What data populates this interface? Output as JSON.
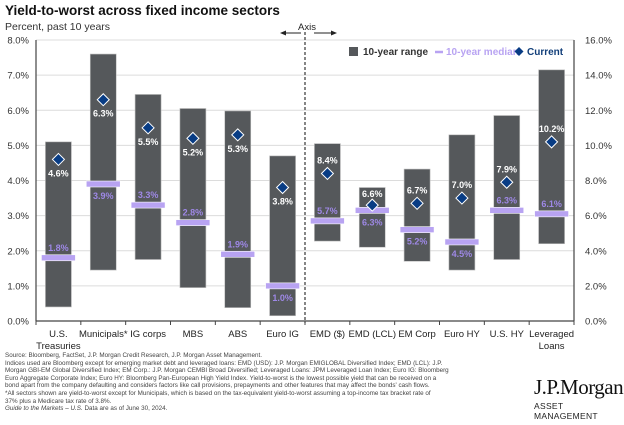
{
  "title": "Yield-to-worst across fixed income sectors",
  "subtitle": "Percent, past 10 years",
  "axis_annotation": "Axis",
  "legend": {
    "range": "10-year range",
    "median": "10-year median",
    "current": "Current"
  },
  "colors": {
    "bar": "#55585b",
    "median": "#b8a3f2",
    "median_label": "#9e88e6",
    "current": "#083c84",
    "current_legend_text": "#123f7a",
    "gridline": "#dcdcdc",
    "axis": "#444444"
  },
  "chart_data": {
    "type": "bar",
    "title": "Yield-to-worst across fixed income sectors",
    "subtitle": "Percent, past 10 years",
    "xlabel": "",
    "ylabel_left": "",
    "ylabel_right": "",
    "left_axis": {
      "range": [
        0,
        8
      ],
      "ticks": [
        "0.0%",
        "1.0%",
        "2.0%",
        "3.0%",
        "4.0%",
        "5.0%",
        "6.0%",
        "7.0%",
        "8.0%"
      ]
    },
    "right_axis": {
      "range": [
        0,
        16
      ],
      "ticks": [
        "0.0%",
        "2.0%",
        "4.0%",
        "6.0%",
        "8.0%",
        "10.0%",
        "12.0%",
        "14.0%",
        "16.0%"
      ]
    },
    "grid": true,
    "legend_position": "top-right",
    "categories": [
      {
        "name": "U.S.",
        "name2": "Treasuries",
        "axis": "left",
        "low": 0.4,
        "high": 5.1,
        "median": 1.8,
        "current": 4.6,
        "median_label": "1.8%",
        "current_label": "4.6%"
      },
      {
        "name": "Municipals*",
        "name2": "",
        "axis": "left",
        "low": 1.45,
        "high": 7.6,
        "median": 3.9,
        "current": 6.3,
        "median_label": "3.9%",
        "current_label": "6.3%"
      },
      {
        "name": "IG corps",
        "name2": "",
        "axis": "left",
        "low": 1.75,
        "high": 6.45,
        "median": 3.3,
        "current": 5.5,
        "median_label": "3.3%",
        "current_label": "5.5%"
      },
      {
        "name": "MBS",
        "name2": "",
        "axis": "left",
        "low": 0.95,
        "high": 6.05,
        "median": 2.8,
        "current": 5.2,
        "median_label": "2.8%",
        "current_label": "5.2%"
      },
      {
        "name": "ABS",
        "name2": "",
        "axis": "left",
        "low": 0.38,
        "high": 5.98,
        "median": 1.9,
        "current": 5.3,
        "median_label": "1.9%",
        "current_label": "5.3%"
      },
      {
        "name": "Euro IG",
        "name2": "",
        "axis": "left",
        "low": 0.15,
        "high": 4.7,
        "median": 1.0,
        "current": 3.8,
        "median_label": "1.0%",
        "current_label": "3.8%"
      },
      {
        "name": "EMD ($)",
        "name2": "",
        "axis": "right",
        "low": 4.55,
        "high": 10.1,
        "median": 5.7,
        "current": 8.4,
        "median_label": "5.7%",
        "current_label": "8.4%"
      },
      {
        "name": "EMD (LCL)",
        "name2": "",
        "axis": "right",
        "low": 4.2,
        "high": 7.6,
        "median": 6.3,
        "current": 6.6,
        "median_label": "6.3%",
        "current_label": "6.6%"
      },
      {
        "name": "EM Corp",
        "name2": "",
        "axis": "right",
        "low": 3.4,
        "high": 8.65,
        "median": 5.2,
        "current": 6.7,
        "median_label": "5.2%",
        "current_label": "6.7%"
      },
      {
        "name": "Euro HY",
        "name2": "",
        "axis": "right",
        "low": 2.9,
        "high": 10.6,
        "median": 4.5,
        "current": 7.0,
        "median_label": "4.5%",
        "current_label": "7.0%"
      },
      {
        "name": "U.S. HY",
        "name2": "",
        "axis": "right",
        "low": 3.5,
        "high": 11.7,
        "median": 6.3,
        "current": 7.9,
        "median_label": "6.3%",
        "current_label": "7.9%"
      },
      {
        "name": "Leveraged",
        "name2": "Loans",
        "axis": "right",
        "low": 4.4,
        "high": 14.3,
        "median": 6.1,
        "current": 10.2,
        "median_label": "6.1%",
        "current_label": "10.2%"
      }
    ],
    "series": [
      {
        "name": "10-year range",
        "type": "floating-bar"
      },
      {
        "name": "10-year median",
        "type": "marker-line"
      },
      {
        "name": "Current",
        "type": "diamond-marker"
      }
    ]
  },
  "footnotes": [
    "Source: Bloomberg, FactSet, J.P. Morgan Credit Research, J.P. Morgan Asset Management.",
    "Indices used are Bloomberg except for emerging market debt and leveraged loans: EMD (USD): J.P. Morgan EMIGLOBAL Diversified Index; EMD (LCL): J.P.",
    "Morgan GBI-EM Global Diversified Index; EM Corp.: J.P. Morgan CEMBI Broad Diversified; Leveraged Loans: JPM Leveraged Loan Index; Euro IG: Bloomberg",
    "Euro Aggregate Corporate Index; Euro HY: Bloomberg Pan-European High Yield Index. Yield-to-worst is the lowest possible yield that can be received on a",
    "bond apart from the company defaulting and considers factors like call provisions, prepayments and other features that may affect the bonds' cash flows.",
    "*All sectors shown are yield-to-worst except for Municipals, which is based on the tax-equivalent yield-to-worst assuming a top-income tax bracket rate of",
    "37% plus a Medicare tax rate of 3.8%."
  ],
  "guide_line": {
    "italic": "Guide to the Markets – U.S.",
    "rest": " Data are as of June 30, 2024."
  },
  "logo": {
    "brand": "J.P.Morgan",
    "sub": "ASSET MANAGEMENT"
  }
}
